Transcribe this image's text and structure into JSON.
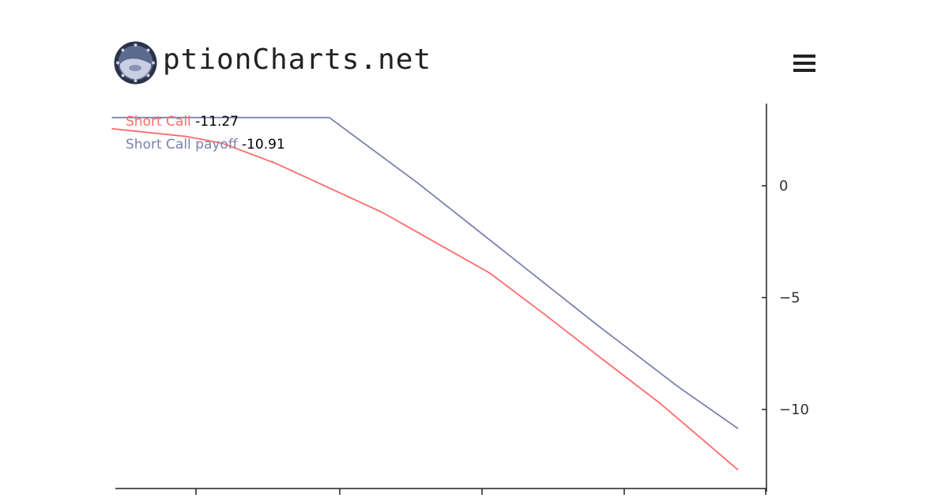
{
  "header": {
    "brand_text": "ptionCharts.net",
    "logo_icon": "porthole-logo-icon",
    "menu_icon": "hamburger-menu-icon"
  },
  "colors": {
    "short_call": "#ff6b6b",
    "short_call_payoff": "#7b82ad",
    "axis": "#222222"
  },
  "legend": {
    "items": [
      {
        "label": "Short Call",
        "value": "-11.27"
      },
      {
        "label": "Short Call payoff",
        "value": "-10.91"
      }
    ]
  },
  "chart_data": {
    "type": "line",
    "y_axis_position": "right",
    "grid": false,
    "legend_placement": "top-left",
    "ylim": [
      -13.5,
      3.5
    ],
    "xlim": [
      0,
      16
    ],
    "y_ticks": [
      {
        "value": 0,
        "label": "0"
      },
      {
        "value": -5,
        "label": "−5"
      },
      {
        "value": -10,
        "label": "−10"
      }
    ],
    "x_ticks": [
      2,
      6,
      10,
      14
    ],
    "series": [
      {
        "name": "Short Call",
        "color": "#ff6b6b",
        "points": [
          [
            -0.1,
            2.55
          ],
          [
            2,
            2.2
          ],
          [
            3,
            1.9
          ],
          [
            4.5,
            1.0
          ],
          [
            6,
            -0.1
          ],
          [
            7.5,
            -1.2
          ],
          [
            9,
            -2.55
          ],
          [
            10.5,
            -3.9
          ],
          [
            12,
            -5.7
          ],
          [
            13.5,
            -7.55
          ],
          [
            15.3,
            -9.75
          ],
          [
            17.5,
            -12.7
          ]
        ]
      },
      {
        "name": "Short Call payoff",
        "color": "#7b82ad",
        "points": [
          [
            -0.1,
            3.05
          ],
          [
            6,
            3.05
          ],
          [
            8.5,
            0.1
          ],
          [
            11,
            -3.05
          ],
          [
            13.5,
            -6.2
          ],
          [
            15.8,
            -9.0
          ],
          [
            17.5,
            -10.85
          ]
        ]
      }
    ]
  }
}
